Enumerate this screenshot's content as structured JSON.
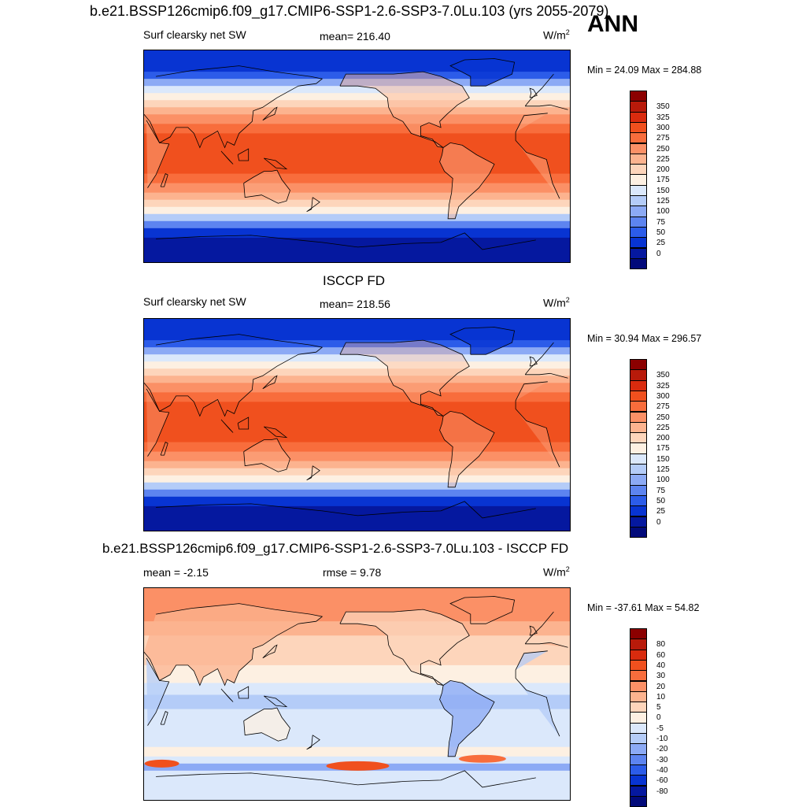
{
  "header": {
    "title": "b.e21.BSSP126cmip6.f09_g17.CMIP6-SSP1-2.6-SSP3-7.0Lu.103 (yrs 2055-2079)",
    "season": "ANN"
  },
  "panels": [
    {
      "left_label": "Surf clearsky net SW",
      "center_label": "mean= 216.40",
      "units": "W/m",
      "units_sup": "2",
      "minmax": "Min =  24.09 Max = 284.88"
    },
    {
      "title": "ISCCP FD",
      "left_label": "Surf clearsky net SW",
      "center_label": "mean= 218.56",
      "units": "W/m",
      "units_sup": "2",
      "minmax": "Min =  30.94 Max = 296.57"
    },
    {
      "title": "b.e21.BSSP126cmip6.f09_g17.CMIP6-SSP1-2.6-SSP3-7.0Lu.103 - ISCCP FD",
      "left_label": "mean =  -2.15",
      "center_label": "rmse =   9.78",
      "units": "W/m",
      "units_sup": "2",
      "minmax": "Min = -37.61 Max =  54.82"
    }
  ],
  "colorbars": {
    "abs": {
      "labels": [
        "350",
        "325",
        "300",
        "275",
        "250",
        "225",
        "200",
        "175",
        "150",
        "125",
        "100",
        "75",
        "50",
        "25",
        "0"
      ],
      "colors": [
        "#8b0000",
        "#b81a0a",
        "#d92b0e",
        "#f0501e",
        "#f86d3c",
        "#fb9066",
        "#fcb38f",
        "#fdd5bb",
        "#fdf0e2",
        "#dbe8fb",
        "#b4ccf8",
        "#8caaf5",
        "#5d84f0",
        "#2c5ce9",
        "#0834d2",
        "#05189f",
        "#020a7a"
      ]
    },
    "diff": {
      "labels": [
        "80",
        "60",
        "40",
        "30",
        "20",
        "10",
        "5",
        "0",
        "-5",
        "-10",
        "-20",
        "-30",
        "-40",
        "-60",
        "-80"
      ],
      "colors": [
        "#8b0000",
        "#b81a0a",
        "#d92b0e",
        "#f0501e",
        "#f86d3c",
        "#fb9066",
        "#fcb38f",
        "#fdd5bb",
        "#fdf0e2",
        "#dbe8fb",
        "#b4ccf8",
        "#8caaf5",
        "#5d84f0",
        "#2c5ce9",
        "#0834d2",
        "#05189f",
        "#020a7a"
      ]
    }
  },
  "chart_data": [
    {
      "type": "heatmap",
      "title": "b.e21.BSSP126cmip6.f09_g17.CMIP6-SSP1-2.6-SSP3-7.0Lu.103 (yrs 2055-2079)",
      "variable": "Surf clearsky net SW",
      "units": "W/m2",
      "mean": 216.4,
      "min": 24.09,
      "max": 284.88,
      "levels": [
        0,
        25,
        50,
        75,
        100,
        125,
        150,
        175,
        200,
        225,
        250,
        275,
        300,
        325,
        350
      ]
    },
    {
      "type": "heatmap",
      "title": "ISCCP FD",
      "variable": "Surf clearsky net SW",
      "units": "W/m2",
      "mean": 218.56,
      "min": 30.94,
      "max": 296.57,
      "levels": [
        0,
        25,
        50,
        75,
        100,
        125,
        150,
        175,
        200,
        225,
        250,
        275,
        300,
        325,
        350
      ]
    },
    {
      "type": "heatmap",
      "title": "b.e21.BSSP126cmip6.f09_g17.CMIP6-SSP1-2.6-SSP3-7.0Lu.103 - ISCCP FD",
      "units": "W/m2",
      "mean": -2.15,
      "rmse": 9.78,
      "min": -37.61,
      "max": 54.82,
      "levels": [
        -80,
        -60,
        -40,
        -30,
        -20,
        -10,
        -5,
        0,
        5,
        10,
        20,
        30,
        40,
        60,
        80
      ]
    }
  ]
}
